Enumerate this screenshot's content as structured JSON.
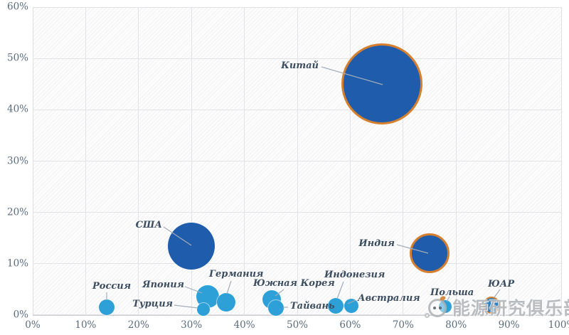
{
  "chart_data": {
    "type": "scatter",
    "variant": "bubble",
    "title": "",
    "grid": true,
    "x_axis": {
      "min": 0,
      "max": 100,
      "tick_labels": [
        "0%",
        "10%",
        "20%",
        "30%",
        "40%",
        "50%",
        "60%",
        "70%",
        "80%",
        "90%",
        "100%"
      ]
    },
    "y_axis": {
      "min": 0,
      "max": 60,
      "tick_labels": [
        "0%",
        "10%",
        "20%",
        "30%",
        "40%",
        "50%",
        "60%"
      ]
    },
    "points": [
      {
        "label": "Китай",
        "x": 66,
        "y": 45,
        "size": 57,
        "color": "#1f5cab",
        "ring": true
      },
      {
        "label": "США",
        "x": 30,
        "y": 13.5,
        "size": 33,
        "color": "#1f5cab",
        "ring": false
      },
      {
        "label": "Индия",
        "x": 75,
        "y": 12,
        "size": 28,
        "color": "#1f5cab",
        "ring": true
      },
      {
        "label": "Россия",
        "x": 14,
        "y": 1.5,
        "size": 11,
        "color": "#2da0d8",
        "ring": false
      },
      {
        "label": "Япония",
        "x": 33,
        "y": 3.6,
        "size": 16,
        "color": "#2da0d8",
        "ring": false
      },
      {
        "label": "Турция",
        "x": 32.3,
        "y": 1.1,
        "size": 9,
        "color": "#2da0d8",
        "ring": false
      },
      {
        "label": "Германия",
        "x": 36.5,
        "y": 2.5,
        "size": 13,
        "color": "#2da0d8",
        "ring": false
      },
      {
        "label": "Южная Корея",
        "x": 45.2,
        "y": 3,
        "size": 13,
        "color": "#2da0d8",
        "ring": false
      },
      {
        "label": "Тайвань",
        "x": 46,
        "y": 1.4,
        "size": 11,
        "color": "#2da0d8",
        "ring": false
      },
      {
        "label": "Индонезия",
        "x": 57.2,
        "y": 1.8,
        "size": 11,
        "color": "#2da0d8",
        "ring": false
      },
      {
        "label": "Австралия",
        "x": 60.2,
        "y": 1.8,
        "size": 10,
        "color": "#2da0d8",
        "ring": false
      },
      {
        "label": "Польша",
        "x": 77.9,
        "y": 1.7,
        "size": 9,
        "color": "#2da0d8",
        "ring": false
      },
      {
        "label": "ЮАР",
        "x": 86.7,
        "y": 1.9,
        "size": 12,
        "color": "#2b7fc0",
        "ring": true
      }
    ]
  },
  "colors": {
    "bubble_dark": "#1f5cab",
    "bubble_light": "#2da0d8",
    "ring_orange": "#d6802f",
    "label_text": "#3c4d60",
    "axis_text": "#5b6b7b",
    "grid_line": "#e3e3e6",
    "leader_line": "#a3adb8"
  },
  "watermark": {
    "text": "能源研究俱乐部",
    "icon": "chat-mascot-icon"
  }
}
